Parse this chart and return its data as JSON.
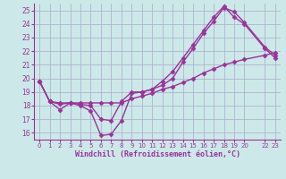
{
  "background_color": "#cce8e8",
  "grid_color": "#aaaacc",
  "line_color": "#993399",
  "marker": "D",
  "markersize": 2.5,
  "linewidth": 1.0,
  "xlabel": "Windchill (Refroidissement éolien,°C)",
  "xlim": [
    -0.5,
    23.5
  ],
  "ylim": [
    15.5,
    25.5
  ],
  "xticks": [
    0,
    1,
    2,
    3,
    4,
    5,
    6,
    7,
    8,
    9,
    10,
    11,
    12,
    13,
    14,
    15,
    16,
    17,
    18,
    19,
    20,
    22,
    23
  ],
  "yticks": [
    16,
    17,
    18,
    19,
    20,
    21,
    22,
    23,
    24,
    25
  ],
  "series": [
    {
      "x": [
        0,
        1,
        2,
        3,
        4,
        5,
        6,
        7,
        8,
        9,
        10,
        11,
        12,
        13,
        14,
        15,
        16,
        17,
        18,
        19,
        20,
        22,
        23
      ],
      "y": [
        19.8,
        18.3,
        17.7,
        18.2,
        18.0,
        17.6,
        15.8,
        15.9,
        16.9,
        18.9,
        19.0,
        19.2,
        19.5,
        20.0,
        21.2,
        22.2,
        23.3,
        24.2,
        25.2,
        24.9,
        24.1,
        22.3,
        21.7
      ]
    },
    {
      "x": [
        0,
        1,
        2,
        3,
        4,
        5,
        6,
        7,
        8,
        9,
        10,
        11,
        12,
        13,
        14,
        15,
        16,
        17,
        18,
        19,
        20,
        22,
        23
      ],
      "y": [
        19.8,
        18.3,
        18.1,
        18.2,
        18.1,
        18.0,
        17.0,
        16.9,
        18.3,
        19.0,
        19.0,
        19.2,
        19.8,
        20.5,
        21.5,
        22.5,
        23.5,
        24.5,
        25.3,
        24.5,
        24.0,
        22.2,
        21.5
      ]
    },
    {
      "x": [
        0,
        1,
        2,
        3,
        4,
        5,
        6,
        7,
        8,
        9,
        10,
        11,
        12,
        13,
        14,
        15,
        16,
        17,
        18,
        19,
        20,
        22,
        23
      ],
      "y": [
        19.8,
        18.3,
        18.2,
        18.2,
        18.2,
        18.2,
        18.2,
        18.2,
        18.2,
        18.5,
        18.7,
        18.9,
        19.2,
        19.4,
        19.7,
        20.0,
        20.4,
        20.7,
        21.0,
        21.2,
        21.4,
        21.7,
        21.9
      ]
    }
  ]
}
